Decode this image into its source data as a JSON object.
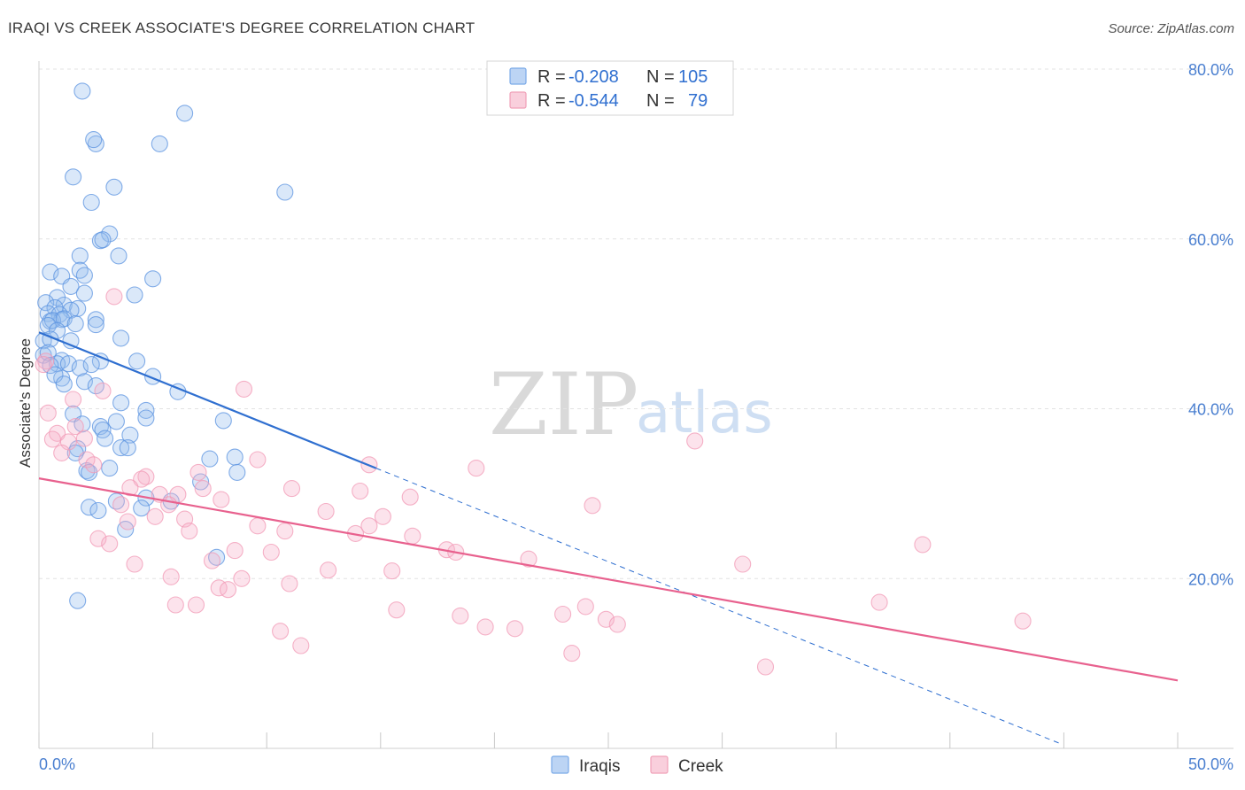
{
  "header": {
    "title": "IRAQI VS CREEK ASSOCIATE'S DEGREE CORRELATION CHART",
    "source_label": "Source: ZipAtlas.com"
  },
  "watermark": {
    "part1": "ZIP",
    "part2": "atlas"
  },
  "legend": {
    "rows": [
      {
        "r_label": "R = ",
        "r_value": "-0.208",
        "n_label": "N = ",
        "n_value": "105",
        "color": "#7aaae8"
      },
      {
        "r_label": "R = ",
        "r_value": "-0.544",
        "n_label": "N = ",
        "n_value": "79",
        "color": "#f0a0b8"
      }
    ]
  },
  "chart_data": {
    "type": "scatter",
    "title": "IRAQI VS CREEK ASSOCIATE'S DEGREE CORRELATION CHART",
    "xlabel": "",
    "ylabel": "Associate's Degree",
    "xlim": [
      0,
      50
    ],
    "ylim": [
      0,
      80
    ],
    "x_tick_labels": [
      "0.0%",
      "50.0%"
    ],
    "y_ticks": [
      20,
      40,
      60,
      80
    ],
    "y_tick_labels": [
      "20.0%",
      "40.0%",
      "60.0%",
      "80.0%"
    ],
    "grid": true,
    "legend_position": "bottom-center",
    "series": [
      {
        "name": "Iraqis",
        "color": "#5b93e0",
        "line_color": "#2f6fd0",
        "trend": {
          "x": [
            0.0,
            14.8
          ],
          "y": [
            49.0,
            33.0
          ]
        },
        "trend_extension": {
          "x": [
            14.8,
            44.9
          ],
          "y": [
            33.0,
            0.5
          ]
        },
        "points": [
          [
            1.9,
            77.4
          ],
          [
            6.4,
            74.8
          ],
          [
            2.5,
            71.2
          ],
          [
            2.4,
            71.7
          ],
          [
            5.3,
            71.2
          ],
          [
            1.5,
            67.3
          ],
          [
            10.8,
            65.5
          ],
          [
            3.3,
            66.1
          ],
          [
            2.3,
            64.3
          ],
          [
            3.1,
            60.6
          ],
          [
            2.7,
            59.8
          ],
          [
            2.8,
            59.9
          ],
          [
            3.5,
            58.0
          ],
          [
            1.8,
            58.0
          ],
          [
            0.5,
            56.1
          ],
          [
            1.8,
            56.3
          ],
          [
            2.0,
            55.7
          ],
          [
            1.0,
            55.6
          ],
          [
            5.0,
            55.3
          ],
          [
            1.4,
            54.4
          ],
          [
            2.0,
            53.6
          ],
          [
            4.2,
            53.4
          ],
          [
            0.8,
            53.1
          ],
          [
            0.3,
            52.5
          ],
          [
            1.1,
            52.2
          ],
          [
            1.7,
            51.8
          ],
          [
            0.7,
            51.9
          ],
          [
            0.4,
            51.2
          ],
          [
            1.4,
            51.6
          ],
          [
            0.9,
            51.1
          ],
          [
            1.0,
            50.5
          ],
          [
            0.5,
            50.3
          ],
          [
            0.6,
            50.4
          ],
          [
            1.1,
            50.6
          ],
          [
            2.5,
            50.5
          ],
          [
            1.6,
            50.0
          ],
          [
            0.4,
            49.8
          ],
          [
            2.5,
            49.9
          ],
          [
            0.8,
            49.2
          ],
          [
            0.2,
            48.0
          ],
          [
            1.4,
            48.0
          ],
          [
            0.5,
            48.2
          ],
          [
            3.6,
            48.3
          ],
          [
            0.2,
            46.3
          ],
          [
            0.4,
            46.6
          ],
          [
            1.0,
            45.7
          ],
          [
            2.7,
            45.6
          ],
          [
            4.3,
            45.6
          ],
          [
            0.8,
            45.3
          ],
          [
            1.3,
            45.3
          ],
          [
            0.5,
            45.1
          ],
          [
            1.8,
            44.8
          ],
          [
            2.3,
            45.2
          ],
          [
            1.0,
            43.6
          ],
          [
            0.7,
            44.0
          ],
          [
            5.0,
            43.8
          ],
          [
            2.0,
            43.2
          ],
          [
            1.1,
            42.9
          ],
          [
            2.5,
            42.7
          ],
          [
            6.1,
            42.0
          ],
          [
            3.6,
            40.7
          ],
          [
            4.7,
            39.8
          ],
          [
            1.5,
            39.4
          ],
          [
            4.7,
            38.9
          ],
          [
            1.9,
            38.2
          ],
          [
            3.4,
            38.5
          ],
          [
            8.1,
            38.6
          ],
          [
            2.7,
            37.9
          ],
          [
            2.8,
            37.5
          ],
          [
            4.0,
            36.9
          ],
          [
            2.9,
            36.5
          ],
          [
            1.7,
            35.3
          ],
          [
            1.6,
            34.8
          ],
          [
            3.6,
            35.4
          ],
          [
            3.9,
            35.4
          ],
          [
            7.5,
            34.1
          ],
          [
            8.6,
            34.3
          ],
          [
            3.1,
            33.0
          ],
          [
            8.7,
            32.5
          ],
          [
            2.1,
            32.7
          ],
          [
            2.2,
            32.5
          ],
          [
            7.1,
            31.4
          ],
          [
            3.4,
            29.1
          ],
          [
            5.8,
            29.1
          ],
          [
            4.7,
            29.5
          ],
          [
            2.2,
            28.4
          ],
          [
            4.5,
            28.3
          ],
          [
            2.6,
            28.0
          ],
          [
            3.8,
            25.8
          ],
          [
            7.8,
            22.5
          ],
          [
            1.7,
            17.4
          ]
        ]
      },
      {
        "name": "Creek",
        "color": "#f29ab6",
        "line_color": "#e8618e",
        "trend": {
          "x": [
            0.0,
            50.0
          ],
          "y": [
            31.8,
            8.0
          ]
        },
        "points": [
          [
            3.3,
            53.2
          ],
          [
            0.3,
            45.6
          ],
          [
            0.2,
            45.2
          ],
          [
            9.0,
            42.3
          ],
          [
            2.8,
            42.1
          ],
          [
            1.5,
            41.1
          ],
          [
            0.4,
            39.5
          ],
          [
            1.6,
            37.9
          ],
          [
            0.8,
            37.1
          ],
          [
            0.6,
            36.4
          ],
          [
            2.0,
            36.5
          ],
          [
            1.3,
            36.1
          ],
          [
            28.8,
            36.2
          ],
          [
            1.0,
            34.8
          ],
          [
            9.6,
            34.0
          ],
          [
            2.1,
            34.0
          ],
          [
            14.5,
            33.4
          ],
          [
            19.2,
            33.0
          ],
          [
            7.0,
            32.5
          ],
          [
            2.4,
            33.4
          ],
          [
            4.7,
            32.0
          ],
          [
            4.5,
            31.7
          ],
          [
            11.1,
            30.6
          ],
          [
            7.2,
            30.6
          ],
          [
            4.0,
            30.7
          ],
          [
            14.1,
            30.3
          ],
          [
            5.3,
            29.9
          ],
          [
            6.1,
            29.9
          ],
          [
            16.3,
            29.6
          ],
          [
            8.0,
            29.3
          ],
          [
            5.7,
            28.7
          ],
          [
            3.6,
            28.7
          ],
          [
            24.3,
            28.6
          ],
          [
            12.6,
            27.9
          ],
          [
            15.1,
            27.3
          ],
          [
            5.1,
            27.3
          ],
          [
            6.4,
            27.0
          ],
          [
            3.9,
            26.7
          ],
          [
            9.6,
            26.2
          ],
          [
            14.5,
            26.2
          ],
          [
            10.8,
            25.6
          ],
          [
            6.6,
            25.6
          ],
          [
            13.9,
            25.3
          ],
          [
            16.4,
            25.0
          ],
          [
            2.6,
            24.7
          ],
          [
            3.1,
            24.1
          ],
          [
            38.8,
            24.0
          ],
          [
            17.9,
            23.4
          ],
          [
            8.6,
            23.3
          ],
          [
            10.2,
            23.1
          ],
          [
            18.3,
            23.1
          ],
          [
            21.5,
            22.3
          ],
          [
            7.6,
            22.1
          ],
          [
            4.2,
            21.7
          ],
          [
            30.9,
            21.7
          ],
          [
            12.7,
            21.0
          ],
          [
            15.5,
            20.9
          ],
          [
            5.8,
            20.2
          ],
          [
            8.9,
            20.0
          ],
          [
            11.0,
            19.4
          ],
          [
            7.9,
            18.9
          ],
          [
            8.3,
            18.7
          ],
          [
            36.9,
            17.2
          ],
          [
            6.0,
            16.9
          ],
          [
            6.9,
            16.9
          ],
          [
            24.0,
            16.7
          ],
          [
            15.7,
            16.3
          ],
          [
            23.0,
            15.8
          ],
          [
            18.5,
            15.6
          ],
          [
            24.9,
            15.2
          ],
          [
            43.2,
            15.0
          ],
          [
            25.4,
            14.6
          ],
          [
            19.6,
            14.3
          ],
          [
            20.9,
            14.1
          ],
          [
            10.6,
            13.8
          ],
          [
            11.5,
            12.1
          ],
          [
            23.4,
            11.2
          ],
          [
            31.9,
            9.6
          ]
        ]
      }
    ]
  }
}
